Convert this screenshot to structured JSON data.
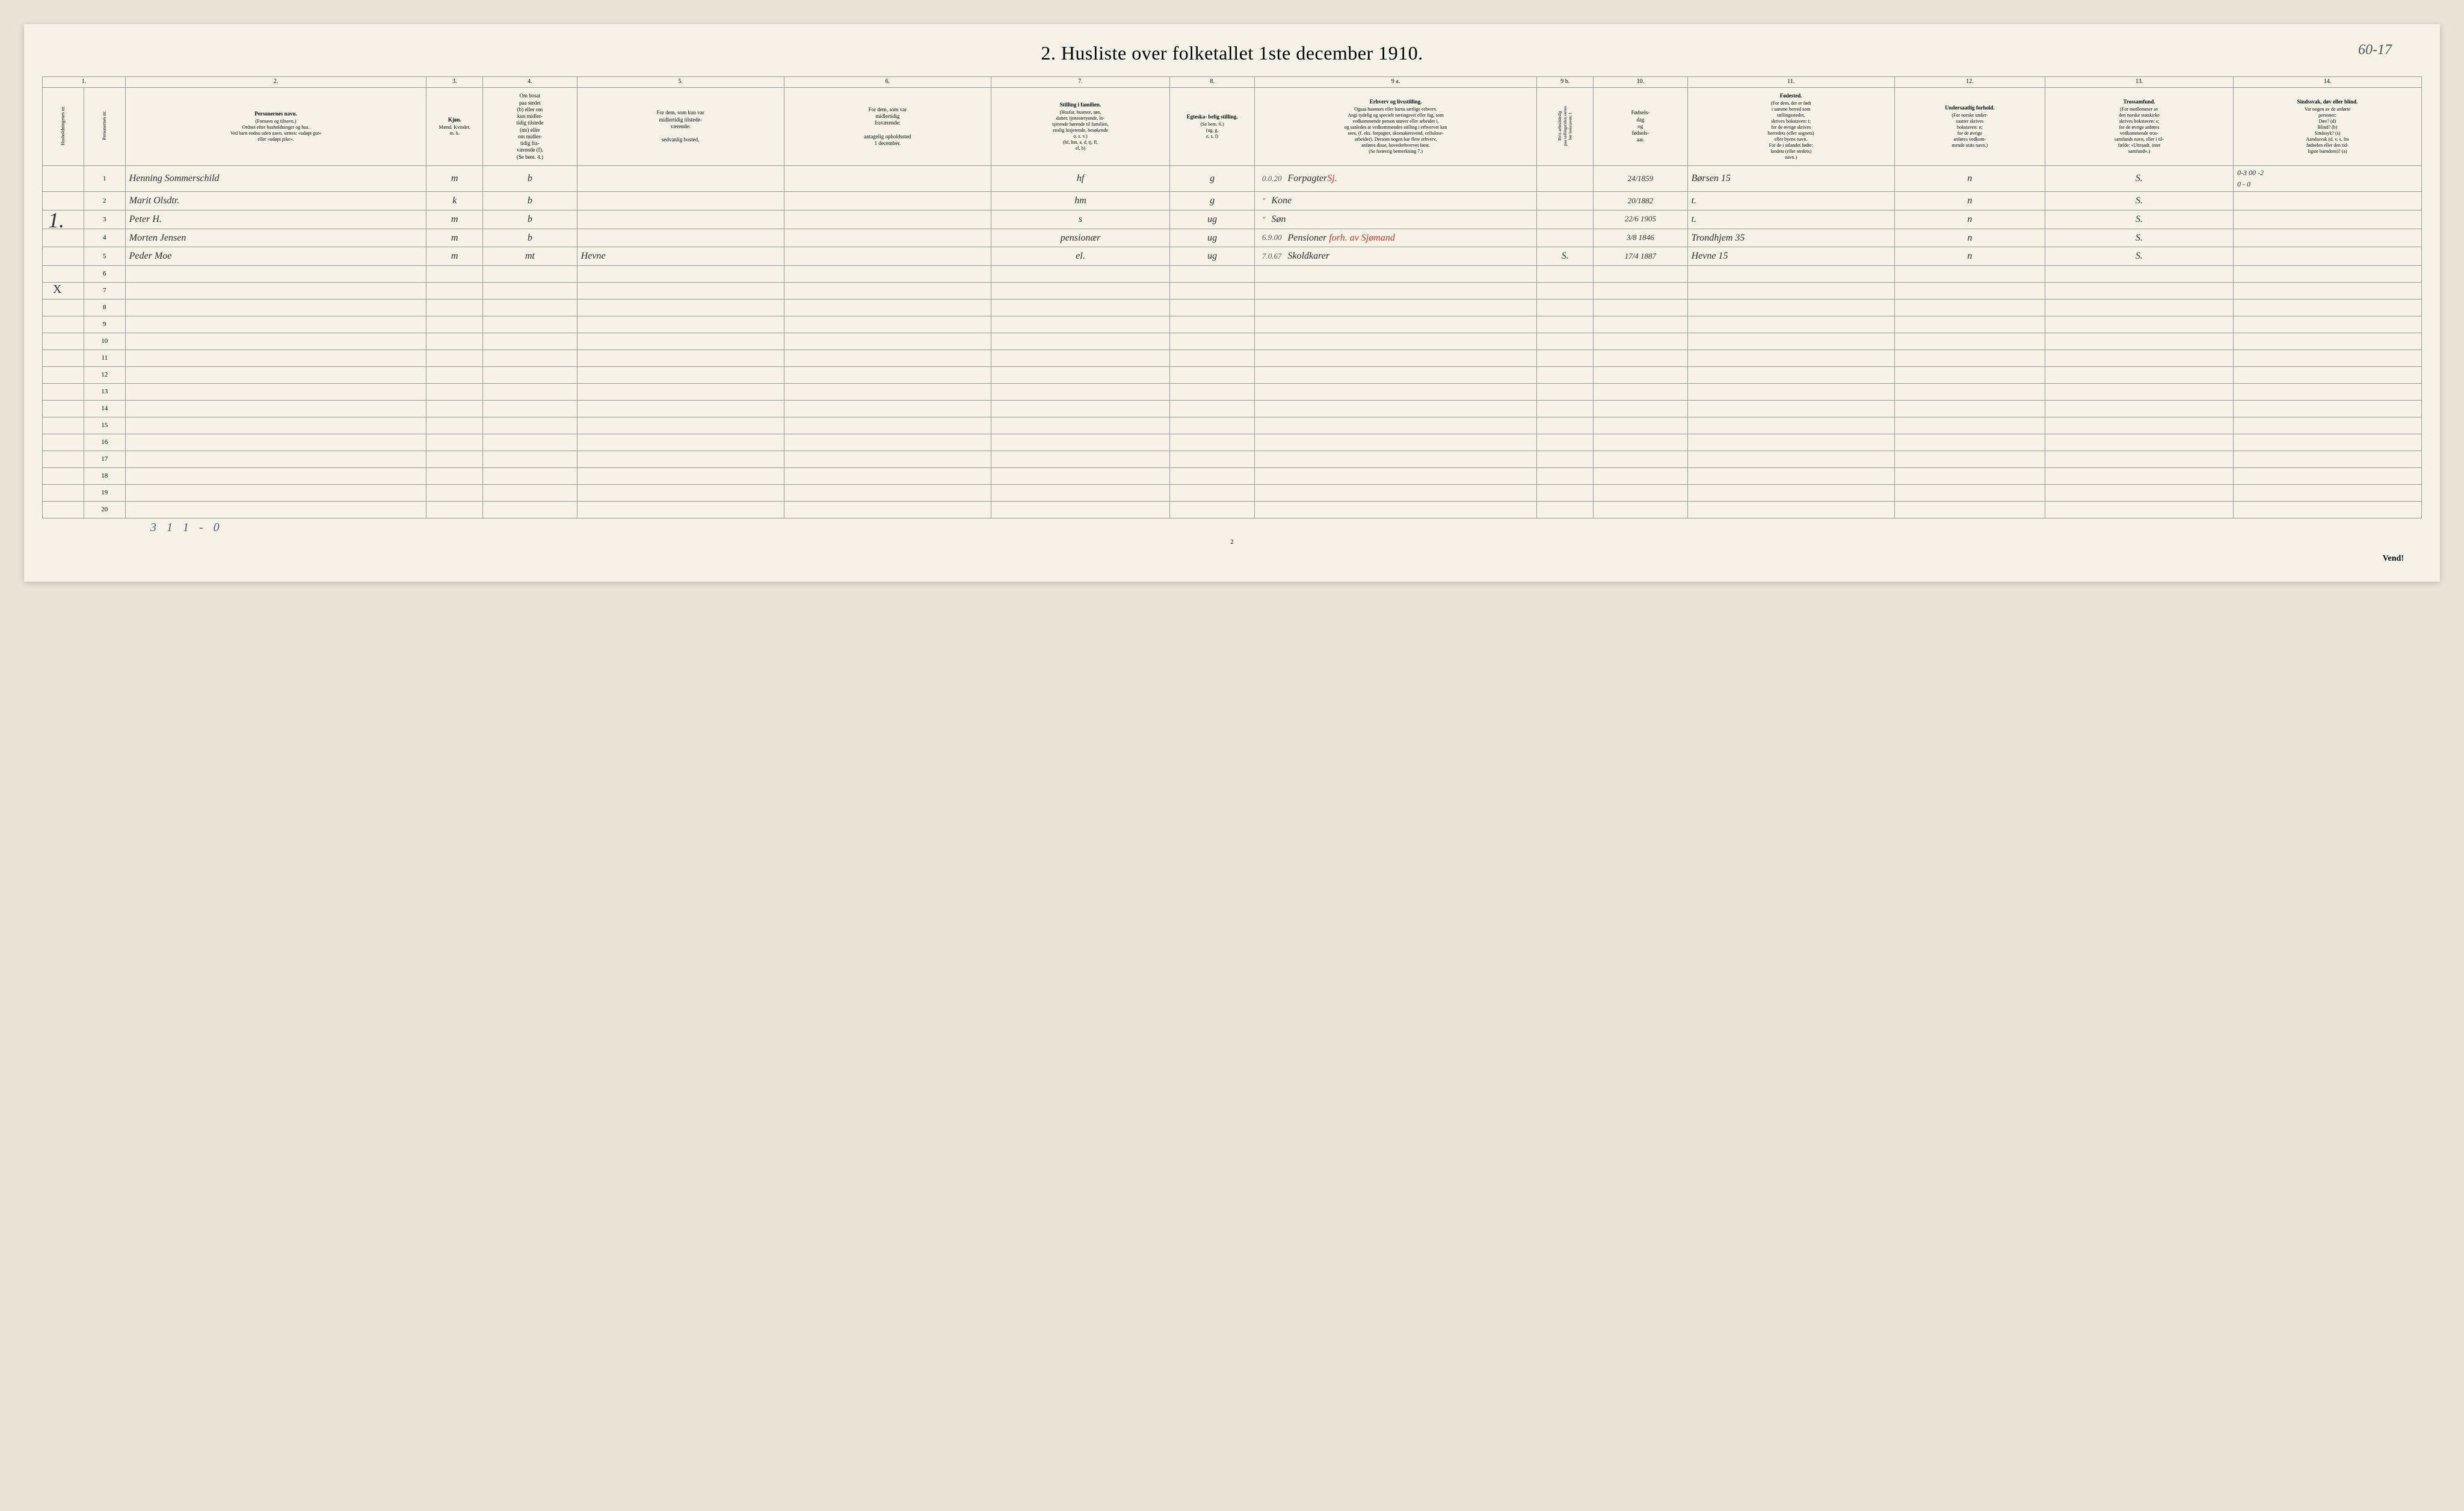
{
  "pencil_top_right": "60-17",
  "title": "2.  Husliste over folketallet 1ste december 1910.",
  "col_numbers": [
    "1.",
    "2.",
    "3.",
    "4.",
    "5.",
    "6.",
    "7.",
    "8.",
    "9 a.",
    "9 b.",
    "10.",
    "11.",
    "12.",
    "13.",
    "14."
  ],
  "headers": {
    "c1a": "Husholdningenes nr.",
    "c1b": "Personernes nr.",
    "c2": "Personernes navn.",
    "c2_sub": "(Fornavn og tilnavn.)\nOrdnet efter husholdninger og hus.\nVed barn endnu uden navn, sættes: «udøpt gut»\neller «udøpt pike».",
    "c3": "Kjøn.",
    "c3_sub": "Mænd.  Kvinder.\nm.   k.",
    "c4": "Om bosat\npaa stedet\n(b) eller om\nkun midler-\ntidig tilstede\n(mt) eller\nom midler-\ntidig fra-\nværende (f).\n(Se bem. 4.)",
    "c5": "For dem, som kun var\nmidlertidig tilstede-\nværende:\n\nsedvanlig bosted.",
    "c6": "For dem, som var\nmidlertidig\nfraværende:\n\nantagelig opholdssted\n1 december.",
    "c7": "Stilling i familien.",
    "c7_sub": "(Husfar, husmor, søn,\ndatter, tjenestetyende, lo-\nsjerende hørende til familien,\nenslig losjerende, besøkende\no. s. v.)\n(hf, hm, s, d, tj, fl,\nel, b)",
    "c8": "Egteska-\nbelig\nstilling.",
    "c8_sub": "(Se bem. 6.)\n(ug, g,\ne, s, f)",
    "c9a": "Erhverv og livsstilling.",
    "c9a_sub": "Ogsaa husmors eller barns særlige erhverv.\nAngi tydelig og specielt næringsvei eller fag, som\nvedkommende person utøver eller arbeider i,\nog saaledes at vedkommendes stilling i erhvervet kan\nsees, (f. eks. forpagter, skomakersvend, cellulose-\narbeider). Dersom nogen har flere erhverv,\nanføres disse, hovederhvervet først.\n(Se forøvrig bemerkning 7.)",
    "c9b": "Hvis arbeidsledig\npaa tællingstiden sættes\nher bokstaven: l.",
    "c10": "Fødsels-\ndag\nog\nfødsels-\naar.",
    "c11": "Fødested.",
    "c11_sub": "(For dem, der er født\ni samme herred som\ntællingsstedet,\nskrives bokstaven: t;\nfor de øvrige skrives\nherredets (eller sognets)\neller byens navn.\nFor de i utlandet fødte:\nlandets (eller stedets)\nnavn.)",
    "c12": "Undersaatlig\nforhold.",
    "c12_sub": "(For norske under-\nsaatter skrives\nbokstaven: n;\nfor de øvrige\nanføres vedkom-\nmende stats navn.)",
    "c13": "Trossamfund.",
    "c13_sub": "(For medlemmer av\nden norske statskirke\nskrives bokstaven: s;\nfor de øvrige anføres\nvedkommende tros-\nsamfunds navn, eller i til-\nfælde: «Uttraadt, intet\nsamfund».)",
    "c14": "Sindssvak, døv\neller blind.",
    "c14_sub": "Var nogen av de anførte\npersoner:\nDøv?        (d)\nBlind?       (b)\nSindssyk?  (s)\nAandssvak (d. v. s. fra\nfødselen eller den tid-\nligste barndom)?  (a)"
  },
  "big_left_mark": "1.",
  "x_mark": "X",
  "rows": [
    {
      "n": "1",
      "name": "Henning Sommerschild",
      "sex": "m",
      "res": "b",
      "c5": "",
      "c6": "",
      "fam": "hf",
      "mar": "g",
      "occ_pre": "0.0.20",
      "occ": "Forpagter",
      "occ_red": "Sj.",
      "birth": "24/1859",
      "place": "Børsen 15",
      "cit": "n",
      "rel": "S.",
      "c14": "0-3 00 -2\n0 - 0"
    },
    {
      "n": "2",
      "name": "Marit Olsdtr.",
      "sex": "k",
      "res": "b",
      "c5": "",
      "c6": "",
      "fam": "hm",
      "mar": "g",
      "occ_pre": "\"",
      "occ": "Kone",
      "occ_red": "",
      "birth": "20/1882",
      "place": "t.",
      "cit": "n",
      "rel": "S.",
      "c14": ""
    },
    {
      "n": "3",
      "name": "Peter H.",
      "sex": "m",
      "res": "b",
      "c5": "",
      "c6": "",
      "fam": "s",
      "mar": "ug",
      "occ_pre": "\"",
      "occ": "Søn",
      "occ_red": "",
      "birth": "22/6 1905",
      "place": "t.",
      "cit": "n",
      "rel": "S.",
      "c14": ""
    },
    {
      "n": "4",
      "name": "Morten Jensen",
      "sex": "m",
      "res": "b",
      "c5": "",
      "c6": "",
      "fam": "pensionær",
      "mar": "ug",
      "occ_pre": "6.9.00",
      "occ": "Pensioner",
      "occ_red": " forh. av Sjømand",
      "birth": "3/8 1846",
      "place": "Trondhjem 35",
      "cit": "n",
      "rel": "S.",
      "c14": ""
    },
    {
      "n": "5",
      "name": "Peder Moe",
      "sex": "m",
      "res": "mt",
      "c5": "Hevne",
      "c6": "",
      "fam": "el.",
      "mar": "ug",
      "occ_pre": "7.0.67",
      "occ": "Skoldkarer",
      "occ_red": "",
      "ledig": "S.",
      "birth": "17/4 1887",
      "place": "Hevne 15",
      "cit": "n",
      "rel": "S.",
      "c14": ""
    }
  ],
  "empty_rows": [
    "6",
    "7",
    "8",
    "9",
    "10",
    "11",
    "12",
    "13",
    "14",
    "15",
    "16",
    "17",
    "18",
    "19",
    "20"
  ],
  "pencil_under": "3 1    1 - 0",
  "footer_pagenum": "2",
  "vend": "Vend!",
  "colors": {
    "paper": "#f5f2e8",
    "border": "#999999",
    "ink": "#2b2b2b",
    "redink": "#c0392b",
    "bluepencil": "#3b4a8a"
  }
}
